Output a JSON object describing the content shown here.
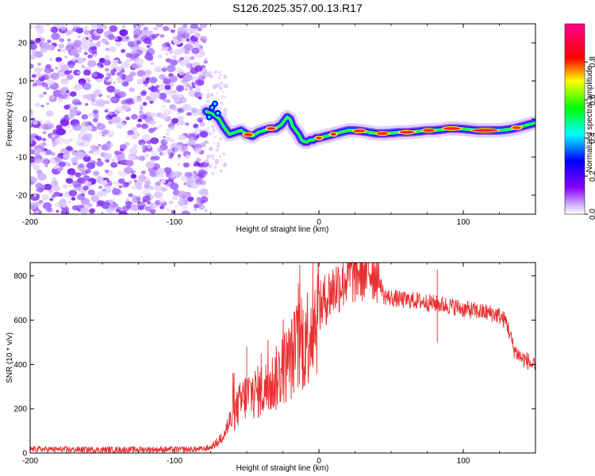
{
  "title": "S126.2025.357.00.13.R17",
  "chart_data": [
    {
      "type": "heatmap",
      "xlabel": "Height of straight line (km)",
      "ylabel": "Frequency (Hz)",
      "xlim": [
        -200,
        150
      ],
      "ylim": [
        -25,
        25
      ],
      "xticks": [
        -200,
        -100,
        0,
        100
      ],
      "yticks": [
        -20,
        -10,
        0,
        10,
        20
      ],
      "colorbar": {
        "label": "Normalized spectral amplitude",
        "range": [
          0,
          1
        ],
        "ticks": [
          "0.0",
          "0.2",
          "0.4",
          "0.6",
          "0.8"
        ]
      },
      "noise_region_x": [
        -200,
        -78
      ],
      "ridge": {
        "x": [
          -78,
          -75,
          -72,
          -69,
          -66,
          -62,
          -58,
          -54,
          -50,
          -46,
          -42,
          -38,
          -34,
          -30,
          -26,
          -22,
          -20,
          -18,
          -16,
          -14,
          -12,
          -10,
          -8,
          -6,
          -4,
          -2,
          0,
          5,
          10,
          15,
          20,
          25,
          30,
          35,
          40,
          45,
          50,
          55,
          60,
          65,
          70,
          75,
          80,
          85,
          90,
          95,
          100,
          105,
          110,
          115,
          120,
          125,
          130,
          135,
          140,
          145,
          150
        ],
        "y": [
          2,
          1.5,
          1,
          0,
          -2,
          -4,
          -3.5,
          -3,
          -4,
          -4.5,
          -3.5,
          -3,
          -2.5,
          -2.5,
          -1.5,
          0.5,
          0,
          -2,
          -3,
          -4,
          -5.5,
          -6,
          -6,
          -5.5,
          -5.5,
          -5,
          -5,
          -4.5,
          -4,
          -3.5,
          -3,
          -3,
          -3.2,
          -3.5,
          -3.8,
          -3.8,
          -3.7,
          -3.5,
          -3.5,
          -3.4,
          -3.2,
          -3,
          -3,
          -2.8,
          -2.5,
          -2.5,
          -2.6,
          -2.8,
          -3,
          -3,
          -3,
          -3,
          -2.8,
          -2.5,
          -2,
          -1.5,
          -1
        ]
      }
    },
    {
      "type": "line",
      "xlabel": "Height of straight line (km)",
      "ylabel": "SNR (10 * v/v)",
      "xlim": [
        -200,
        150
      ],
      "ylim": [
        0,
        860
      ],
      "xticks": [
        -200,
        -100,
        0,
        100
      ],
      "yticks": [
        0,
        200,
        400,
        600,
        800
      ],
      "color": "#e83030",
      "series": [
        {
          "name": "SNR",
          "x": [
            -200,
            -180,
            -160,
            -140,
            -120,
            -100,
            -90,
            -80,
            -75,
            -70,
            -65,
            -60,
            -55,
            -50,
            -45,
            -40,
            -35,
            -30,
            -25,
            -20,
            -15,
            -10,
            -5,
            0,
            5,
            10,
            15,
            20,
            25,
            30,
            35,
            40,
            42,
            45,
            50,
            55,
            60,
            65,
            70,
            75,
            80,
            85,
            90,
            95,
            100,
            105,
            110,
            115,
            120,
            125,
            130,
            135,
            140,
            145,
            150
          ],
          "y": [
            18,
            16,
            15,
            15,
            16,
            16,
            16,
            18,
            25,
            50,
            100,
            160,
            220,
            260,
            270,
            280,
            300,
            330,
            380,
            420,
            480,
            500,
            580,
            650,
            700,
            740,
            770,
            800,
            815,
            825,
            830,
            825,
            780,
            710,
            700,
            695,
            690,
            690,
            685,
            680,
            675,
            670,
            665,
            660,
            650,
            645,
            640,
            635,
            630,
            620,
            590,
            470,
            430,
            415,
            380
          ]
        }
      ]
    }
  ]
}
